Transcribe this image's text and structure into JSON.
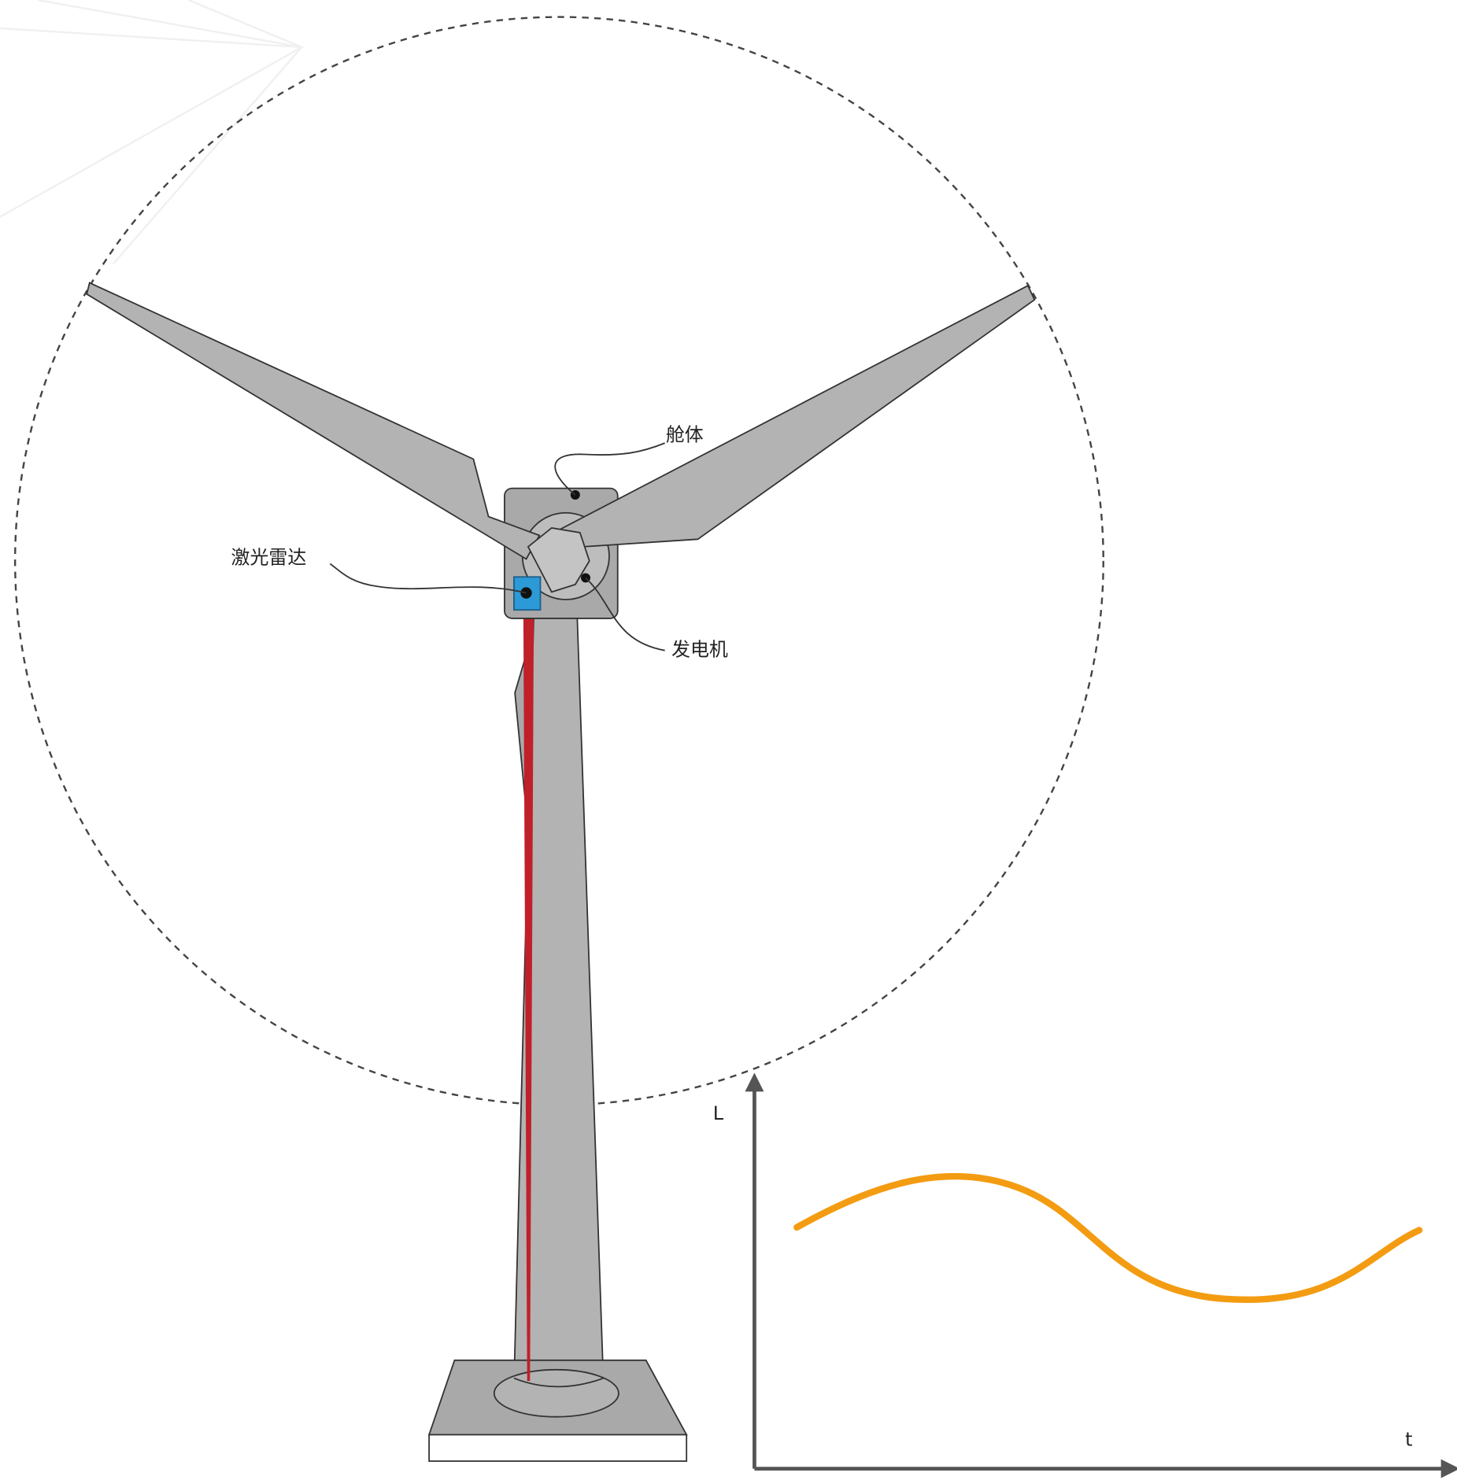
{
  "labels": {
    "nacelle": "舱体",
    "lidar": "激光雷达",
    "generator": "发电机"
  },
  "plot": {
    "y_axis_label": "L",
    "x_axis_label": "t"
  }
}
